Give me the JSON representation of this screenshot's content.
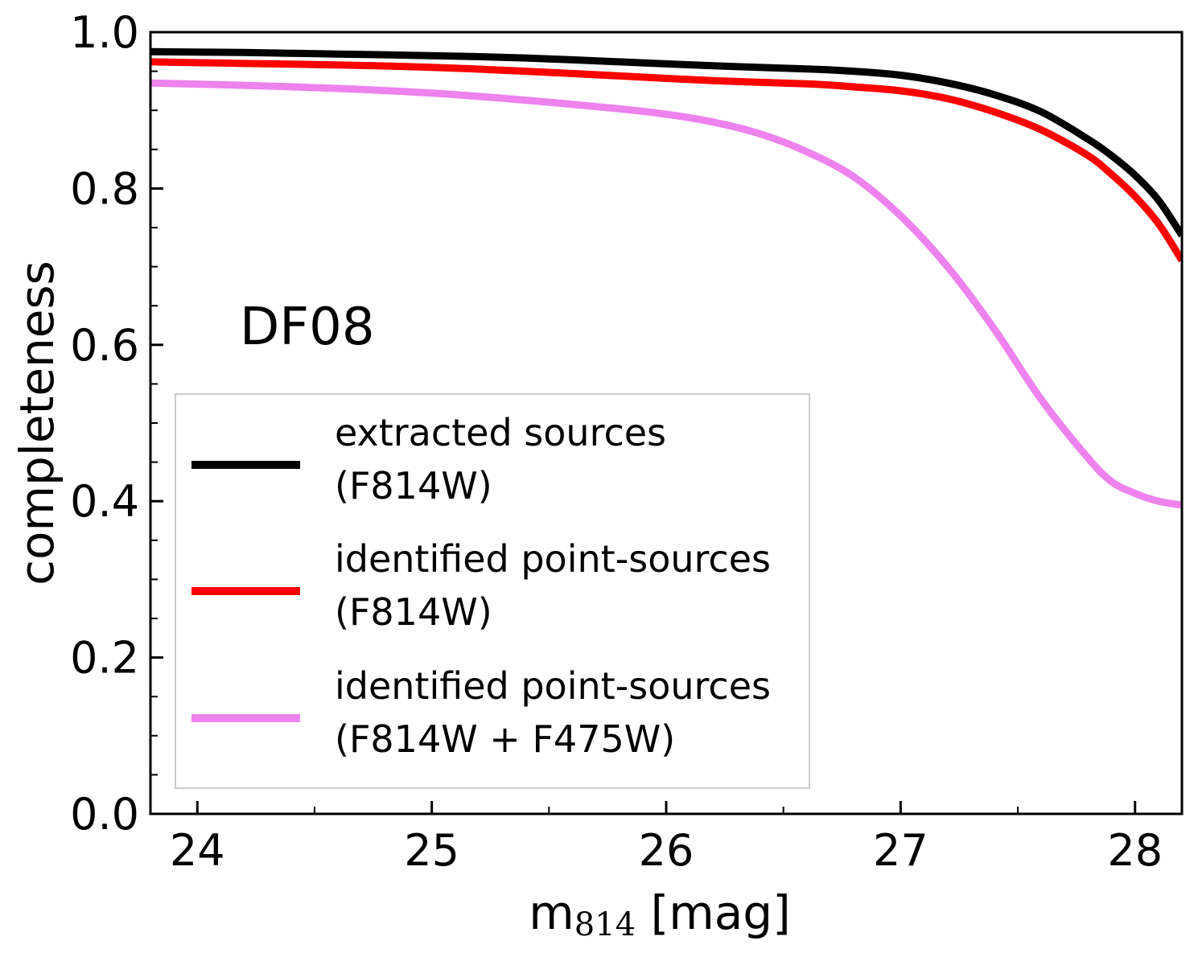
{
  "chart_data": {
    "type": "line",
    "annotation": "DF08",
    "xlabel_main": "m",
    "xlabel_sub": "814",
    "xlabel_unit": " [mag]",
    "ylabel": "completeness",
    "xlim": [
      23.8,
      28.2
    ],
    "ylim": [
      0.0,
      1.0
    ],
    "xticks": [
      24,
      25,
      26,
      27,
      28
    ],
    "xtick_labels": [
      "24",
      "25",
      "26",
      "27",
      "28"
    ],
    "yticks": [
      0.0,
      0.2,
      0.4,
      0.6,
      0.8,
      1.0
    ],
    "ytick_labels": [
      "0.0",
      "0.2",
      "0.4",
      "0.6",
      "0.8",
      "1.0"
    ],
    "legend_position": "lower-left",
    "series": [
      {
        "name_line1": "extracted sources",
        "name_line2": "(F814W)",
        "color": "#000000",
        "x": [
          23.8,
          24.2,
          24.6,
          25.0,
          25.4,
          25.8,
          26.2,
          26.6,
          26.8,
          27.0,
          27.2,
          27.4,
          27.6,
          27.8,
          27.9,
          28.0,
          28.1,
          28.2
        ],
        "y": [
          0.975,
          0.974,
          0.972,
          0.97,
          0.967,
          0.962,
          0.957,
          0.953,
          0.95,
          0.945,
          0.935,
          0.92,
          0.898,
          0.863,
          0.842,
          0.817,
          0.785,
          0.74
        ]
      },
      {
        "name_line1": "identified point-sources",
        "name_line2": "(F814W)",
        "color": "#ff0000",
        "x": [
          23.8,
          24.2,
          24.6,
          25.0,
          25.4,
          25.8,
          26.2,
          26.6,
          26.8,
          27.0,
          27.2,
          27.4,
          27.6,
          27.8,
          27.9,
          28.0,
          28.1,
          28.2
        ],
        "y": [
          0.962,
          0.96,
          0.958,
          0.955,
          0.95,
          0.944,
          0.938,
          0.934,
          0.93,
          0.925,
          0.915,
          0.898,
          0.875,
          0.842,
          0.818,
          0.79,
          0.755,
          0.708
        ]
      },
      {
        "name_line1": "identified point-sources",
        "name_line2": "(F814W + F475W)",
        "color": "#ee82ee",
        "x": [
          23.8,
          24.2,
          24.6,
          25.0,
          25.4,
          25.8,
          26.0,
          26.2,
          26.4,
          26.6,
          26.8,
          27.0,
          27.2,
          27.4,
          27.6,
          27.8,
          27.9,
          28.0,
          28.1,
          28.2
        ],
        "y": [
          0.935,
          0.932,
          0.928,
          0.922,
          0.913,
          0.902,
          0.895,
          0.885,
          0.87,
          0.847,
          0.815,
          0.765,
          0.7,
          0.62,
          0.53,
          0.455,
          0.425,
          0.41,
          0.4,
          0.395
        ]
      }
    ]
  }
}
